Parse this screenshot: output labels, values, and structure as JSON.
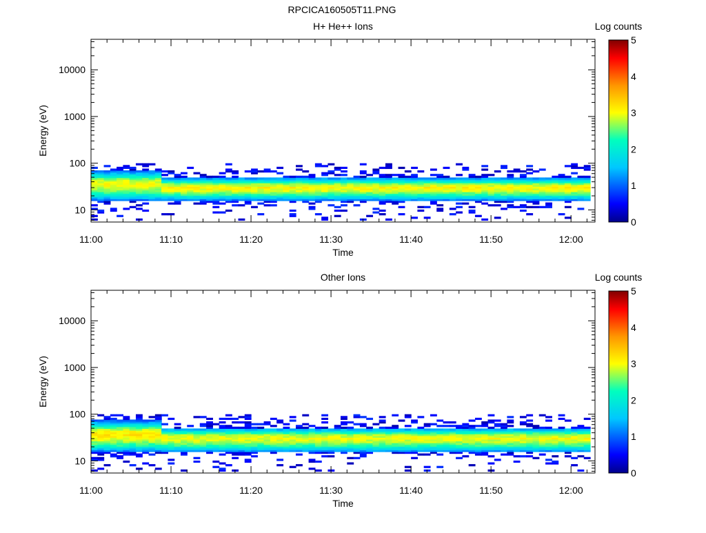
{
  "title": "RPCICA160505T11.PNG",
  "chart_data": [
    {
      "type": "heatmap",
      "title": "H+ He++ Ions",
      "xlabel": "Time",
      "ylabel": "Energy (eV)",
      "x_ticks": [
        "11:00",
        "11:10",
        "11:20",
        "11:30",
        "11:40",
        "11:50",
        "12:00"
      ],
      "x_range": [
        "11:00",
        "12:03"
      ],
      "y_scale": "log",
      "y_ticks": [
        "10",
        "100",
        "1000",
        "10000"
      ],
      "y_range": [
        5.5,
        45000
      ],
      "colorbar": {
        "label": "Log counts",
        "ticks": [
          "0",
          "1",
          "2",
          "3",
          "4",
          "5"
        ],
        "range": [
          0,
          5
        ],
        "colormap": "rainbow"
      },
      "data_extent": {
        "time_start": "11:00",
        "time_end": "12:02",
        "energy_min_eV": 6,
        "energy_max_eV": 100
      },
      "energy_profile": {
        "energy_eV": [
          7,
          9,
          11,
          14,
          17,
          21,
          26,
          31,
          37,
          44,
          52,
          62,
          74,
          88
        ],
        "log_counts_early": [
          0.2,
          0.3,
          0.4,
          0.5,
          1.2,
          2.1,
          2.6,
          2.9,
          3.0,
          2.8,
          2.1,
          1.4,
          0.8,
          0.5
        ],
        "log_counts_late": [
          0.1,
          0.2,
          0.3,
          0.4,
          1.3,
          2.3,
          2.9,
          3.1,
          2.6,
          1.6,
          0.8,
          0.5,
          0.35,
          0.3
        ],
        "transition_time": "11:08"
      }
    },
    {
      "type": "heatmap",
      "title": "Other Ions",
      "xlabel": "Time",
      "ylabel": "Energy (eV)",
      "x_ticks": [
        "11:00",
        "11:10",
        "11:20",
        "11:30",
        "11:40",
        "11:50",
        "12:00"
      ],
      "x_range": [
        "11:00",
        "12:03"
      ],
      "y_scale": "log",
      "y_ticks": [
        "10",
        "100",
        "1000",
        "10000"
      ],
      "y_range": [
        5.5,
        45000
      ],
      "colorbar": {
        "label": "Log counts",
        "ticks": [
          "0",
          "1",
          "2",
          "3",
          "4",
          "5"
        ],
        "range": [
          0,
          5
        ],
        "colormap": "rainbow"
      },
      "data_extent": {
        "time_start": "11:00",
        "time_end": "12:02",
        "energy_min_eV": 6,
        "energy_max_eV": 100
      },
      "energy_profile": {
        "energy_eV": [
          7,
          9,
          11,
          14,
          17,
          21,
          26,
          31,
          37,
          44,
          52,
          62,
          74,
          88
        ],
        "log_counts_early": [
          0.2,
          0.3,
          0.4,
          0.6,
          1.3,
          2.2,
          2.7,
          3.0,
          3.2,
          3.0,
          2.4,
          1.6,
          1.0,
          0.7
        ],
        "log_counts_late": [
          0.1,
          0.2,
          0.3,
          0.5,
          1.4,
          2.3,
          2.8,
          3.0,
          2.7,
          1.8,
          0.9,
          0.5,
          0.35,
          0.3
        ],
        "transition_time": "11:08"
      }
    }
  ]
}
